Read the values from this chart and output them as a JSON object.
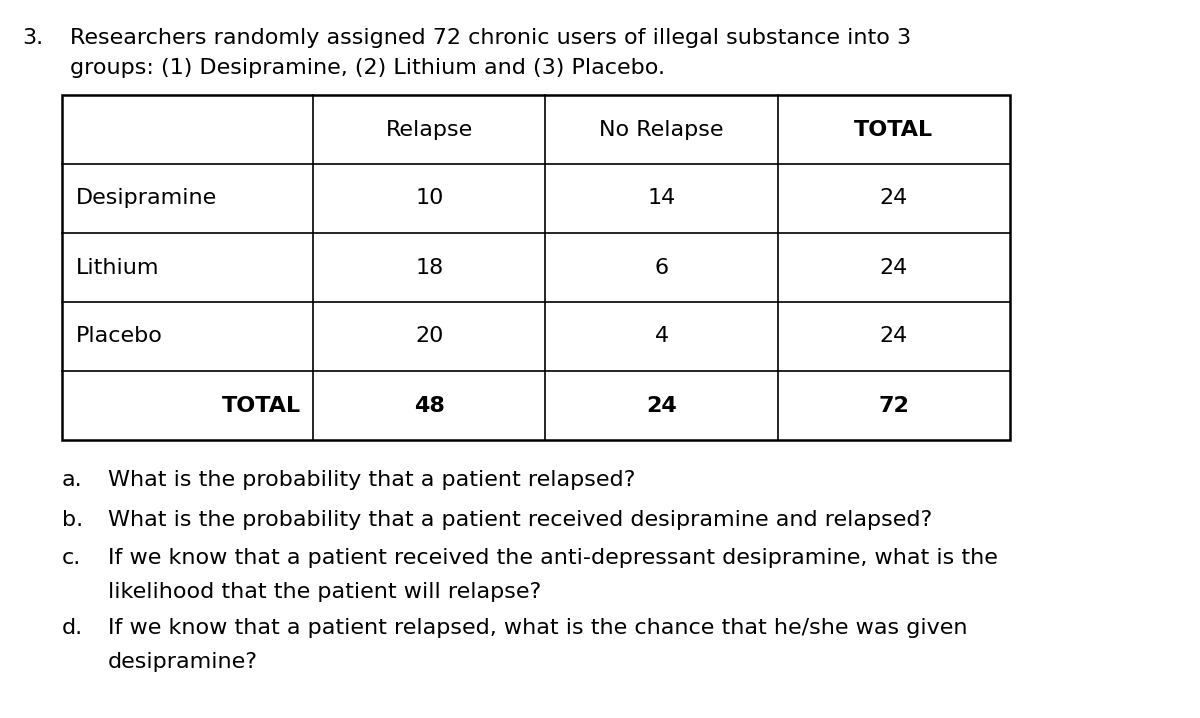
{
  "title_number": "3.",
  "title_text_line1": "Researchers randomly assigned 72 chronic users of illegal substance into 3",
  "title_text_line2": "groups: (1) Desipramine, (2) Lithium and (3) Placebo.",
  "table": {
    "col_headers": [
      "",
      "Relapse",
      "No Relapse",
      "TOTAL"
    ],
    "rows": [
      [
        "Desipramine",
        "10",
        "14",
        "24"
      ],
      [
        "Lithium",
        "18",
        "6",
        "24"
      ],
      [
        "Placebo",
        "20",
        "4",
        "24"
      ],
      [
        "TOTAL",
        "48",
        "24",
        "72"
      ]
    ]
  },
  "questions": [
    {
      "letter": "a.",
      "line1": "What is the probability that a patient relapsed?",
      "line2": ""
    },
    {
      "letter": "b.",
      "line1": "What is the probability that a patient received desipramine and relapsed?",
      "line2": ""
    },
    {
      "letter": "c.",
      "line1": "If we know that a patient received the anti-depressant desipramine, what is the",
      "line2": "likelihood that the patient will relapse?"
    },
    {
      "letter": "d.",
      "line1": "If we know that a patient relapsed, what is the chance that he/she was given",
      "line2": "desipramine?"
    }
  ],
  "bg_color": "#ffffff",
  "font_size_title": 16,
  "font_size_table": 16,
  "font_size_questions": 16,
  "font_family": "DejaVu Sans"
}
